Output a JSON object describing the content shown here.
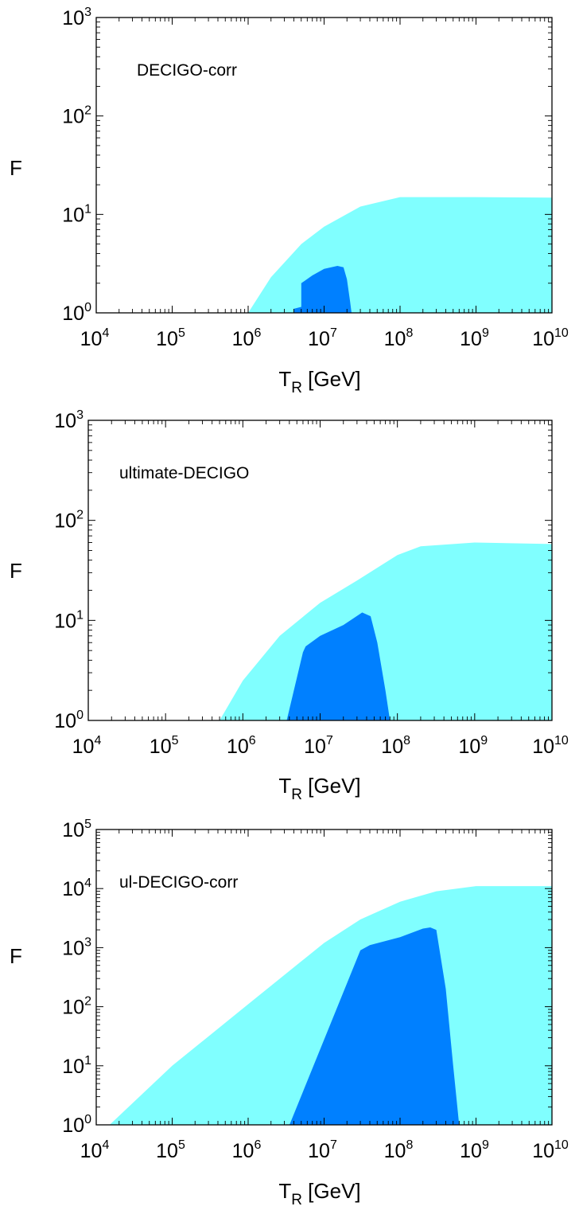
{
  "colors": {
    "light_region": "#80ffff",
    "dark_region": "#0080ff",
    "frame": "#000000"
  },
  "chart_data": [
    {
      "type": "area",
      "annotation": "DECIGO-corr",
      "xlabel": "T_R [GeV]",
      "xlabel_main": "T",
      "xlabel_sub": "R",
      "xlabel_unit": " [GeV]",
      "ylabel": "F",
      "x_scale": "log",
      "y_scale": "log",
      "xlim": [
        10000,
        10000000000
      ],
      "ylim": [
        1,
        1000
      ],
      "x_tick_exponents": [
        4,
        5,
        6,
        7,
        8,
        9,
        10
      ],
      "y_tick_exponents": [
        0,
        1,
        2,
        3
      ],
      "series": [
        {
          "region": "light",
          "x": [
            1000000,
            2000000,
            5000000,
            10000000,
            30000000,
            100000000,
            1000000000,
            10000000000
          ],
          "y": [
            1,
            2.3,
            5,
            7.5,
            12,
            15,
            15,
            14.8
          ]
        },
        {
          "region": "dark",
          "x": [
            4000000,
            5000000,
            5000000,
            7000000,
            10000000,
            15000000,
            18000000,
            20000000,
            22000000,
            23000000
          ],
          "y": [
            1.1,
            1.15,
            2,
            2.4,
            2.8,
            3,
            2.9,
            2.2,
            1.3,
            1
          ]
        }
      ]
    },
    {
      "type": "area",
      "annotation": "ultimate-DECIGO",
      "xlabel": "T_R [GeV]",
      "xlabel_main": "T",
      "xlabel_sub": "R",
      "xlabel_unit": " [GeV]",
      "ylabel": "F",
      "x_scale": "log",
      "y_scale": "log",
      "xlim": [
        10000,
        10000000000
      ],
      "ylim": [
        1,
        1000
      ],
      "x_tick_exponents": [
        4,
        5,
        6,
        7,
        8,
        9,
        10
      ],
      "y_tick_exponents": [
        0,
        1,
        2,
        3
      ],
      "series": [
        {
          "region": "light",
          "x": [
            500000,
            1000000,
            3000000,
            10000000,
            30000000,
            100000000,
            200000000,
            1000000000,
            10000000000
          ],
          "y": [
            1,
            2.5,
            7,
            15,
            25,
            45,
            55,
            60,
            58
          ]
        },
        {
          "region": "dark",
          "x": [
            3700000,
            6000000,
            6500000,
            10000000,
            20000000,
            35000000,
            45000000,
            55000000,
            70000000,
            80000000
          ],
          "y": [
            1,
            4.8,
            5.5,
            7,
            9,
            12,
            11,
            6,
            2,
            1
          ]
        }
      ]
    },
    {
      "type": "area",
      "annotation": "ul-DECIGO-corr",
      "xlabel": "T_R [GeV]",
      "xlabel_main": "T",
      "xlabel_sub": "R",
      "xlabel_unit": " [GeV]",
      "ylabel": "F",
      "x_scale": "log",
      "y_scale": "log",
      "xlim": [
        10000,
        10000000000
      ],
      "ylim": [
        1,
        100000
      ],
      "x_tick_exponents": [
        4,
        5,
        6,
        7,
        8,
        9,
        10
      ],
      "y_tick_exponents": [
        0,
        1,
        2,
        3,
        4,
        5
      ],
      "series": [
        {
          "region": "light",
          "x": [
            15000,
            100000,
            1000000,
            10000000,
            30000000,
            100000000,
            300000000,
            1000000000,
            10000000000
          ],
          "y": [
            1,
            10,
            110,
            1200,
            3000,
            6000,
            9000,
            11000,
            11000
          ]
        },
        {
          "region": "dark",
          "x": [
            3500000,
            30000000,
            40000000,
            100000000,
            200000000,
            250000000,
            300000000,
            400000000,
            500000000,
            600000000
          ],
          "y": [
            1,
            900,
            1100,
            1500,
            2100,
            2200,
            2000,
            200,
            10,
            1
          ]
        }
      ]
    }
  ]
}
